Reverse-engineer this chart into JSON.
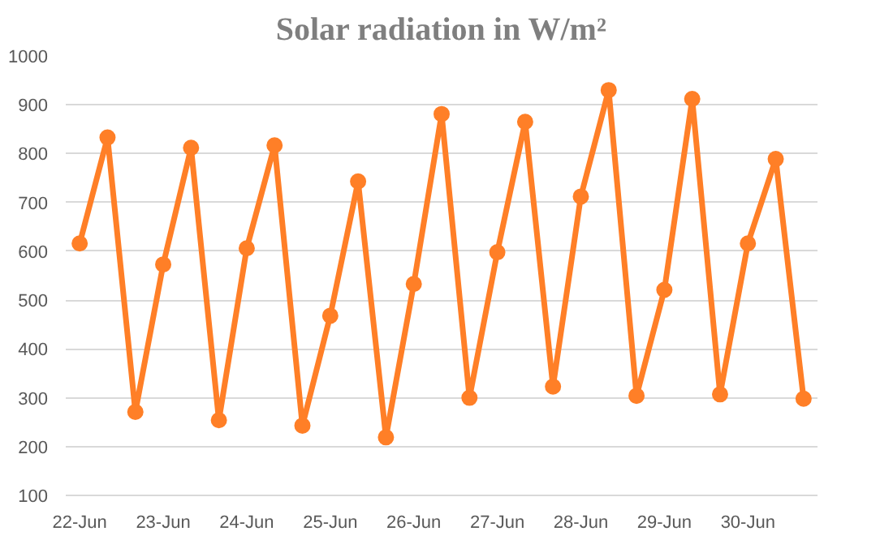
{
  "chart_data": {
    "type": "line",
    "title": "Solar radiation in W/m²",
    "categories": [
      "22-Jun",
      null,
      null,
      "23-Jun",
      null,
      null,
      "24-Jun",
      null,
      null,
      "25-Jun",
      null,
      null,
      "26-Jun",
      null,
      null,
      "27-Jun",
      null,
      null,
      "28-Jun",
      null,
      null,
      "29-Jun",
      null,
      null,
      "30-Jun",
      null,
      null
    ],
    "series": [
      {
        "color": "#ff7f27",
        "values": [
          616,
          833,
          271,
          573,
          812,
          254,
          606,
          817,
          243,
          468,
          743,
          219,
          533,
          881,
          300,
          598,
          865,
          323,
          712,
          930,
          304,
          521,
          912,
          307,
          616,
          789,
          298
        ]
      }
    ],
    "ylim": [
      100,
      1000
    ],
    "yticks": [
      100,
      200,
      300,
      400,
      500,
      600,
      700,
      800,
      900,
      1000
    ],
    "grid": "y",
    "marker": "circle",
    "line_style": "solid"
  }
}
